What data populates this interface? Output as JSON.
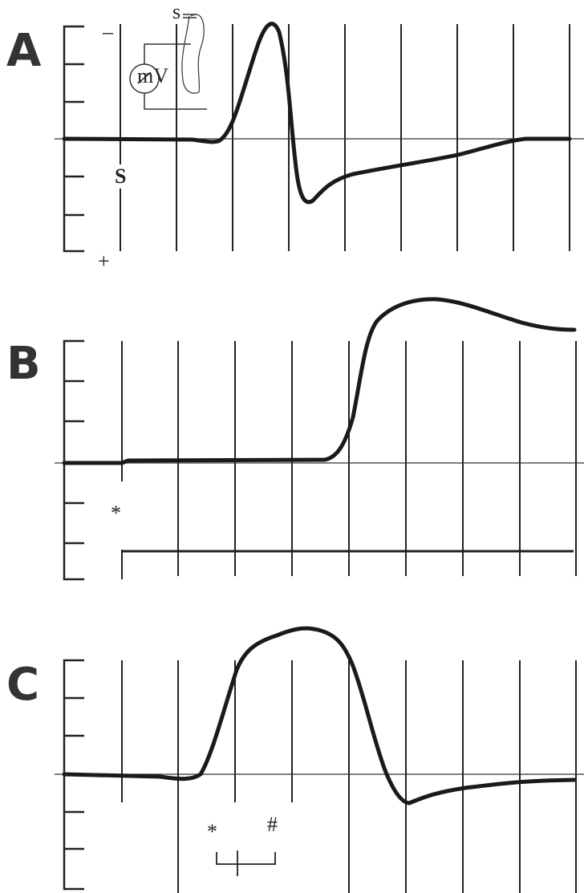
{
  "panels": [
    {
      "label": "A",
      "annotations": [
        "S",
        "–",
        "+"
      ],
      "inset": [
        "s",
        "mV"
      ]
    },
    {
      "label": "B",
      "annotations": [
        "*"
      ]
    },
    {
      "label": "C",
      "annotations": [
        "*",
        "#"
      ]
    }
  ]
}
